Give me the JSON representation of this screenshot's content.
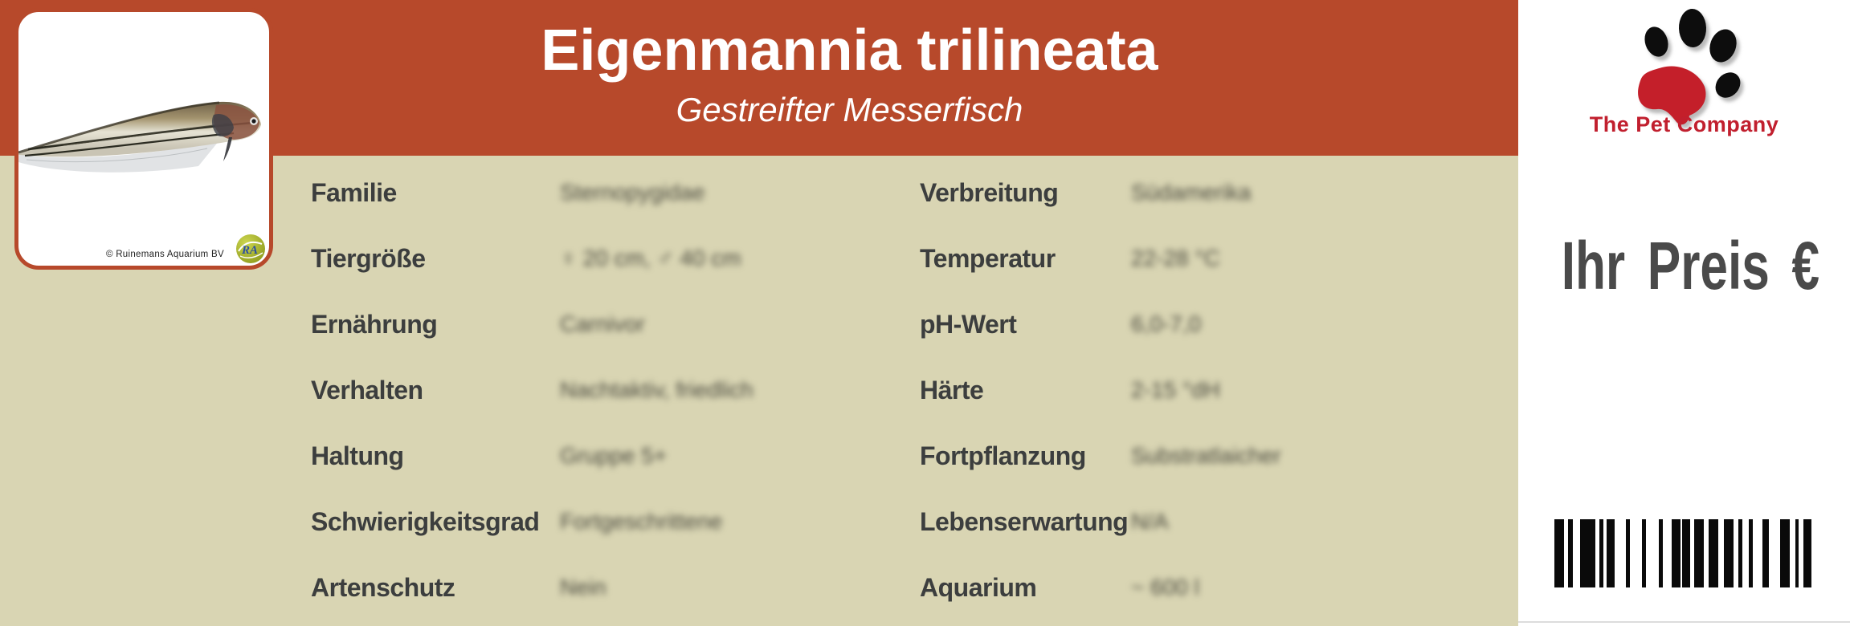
{
  "label": {
    "title": "Eigenmannia trilineata",
    "subtitle": "Gestreifter Messerfisch"
  },
  "photo_card": {
    "credit": "© Ruinemans Aquarium BV",
    "watermark_text": "RA"
  },
  "specs": {
    "values_blurred": true,
    "left": [
      {
        "label": "Familie",
        "value": "Sternopygidae"
      },
      {
        "label": "Tiergröße",
        "value": "♀ 20 cm, ♂ 40 cm"
      },
      {
        "label": "Ernährung",
        "value": "Carnivor"
      },
      {
        "label": "Verhalten",
        "value": "Nachtaktiv, friedlich"
      },
      {
        "label": "Haltung",
        "value": "Gruppe 5+"
      },
      {
        "label": "Schwierigkeitsgrad",
        "value": "Fortgeschrittene"
      },
      {
        "label": "Artenschutz",
        "value": "Nein"
      }
    ],
    "right": [
      {
        "label": "Verbreitung",
        "value": "Südamerika"
      },
      {
        "label": "Temperatur",
        "value": "22-28 °C"
      },
      {
        "label": "pH-Wert",
        "value": "6,0-7,0"
      },
      {
        "label": "Härte",
        "value": "2-15 °dH"
      },
      {
        "label": "Fortpflanzung",
        "value": "Substratlaicher"
      },
      {
        "label": "Lebenserwartung",
        "value": "N/A"
      },
      {
        "label": "Aquarium",
        "value": "~ 600 l"
      }
    ]
  },
  "brand": {
    "name": "The Pet Company"
  },
  "price": {
    "label": "Ihr Preis €"
  },
  "barcode": {
    "bars": [
      [
        12,
        5
      ],
      [
        6,
        9
      ],
      [
        19,
        5
      ],
      [
        5,
        4
      ],
      [
        10,
        14
      ],
      [
        5,
        15
      ],
      [
        5,
        16
      ],
      [
        5,
        11
      ],
      [
        11,
        2
      ],
      [
        10,
        5
      ],
      [
        12,
        6
      ],
      [
        12,
        7
      ],
      [
        12,
        6
      ],
      [
        5,
        8
      ],
      [
        5,
        12
      ],
      [
        8,
        14
      ],
      [
        12,
        7
      ],
      [
        4,
        6
      ],
      [
        10,
        0
      ]
    ]
  },
  "colors": {
    "header_red": "#b7492b",
    "body_beige": "#d9d5b3",
    "label_gray": "#3c3e3e",
    "brand_red": "#c11f2e",
    "price_gray": "#4a4a4a"
  }
}
